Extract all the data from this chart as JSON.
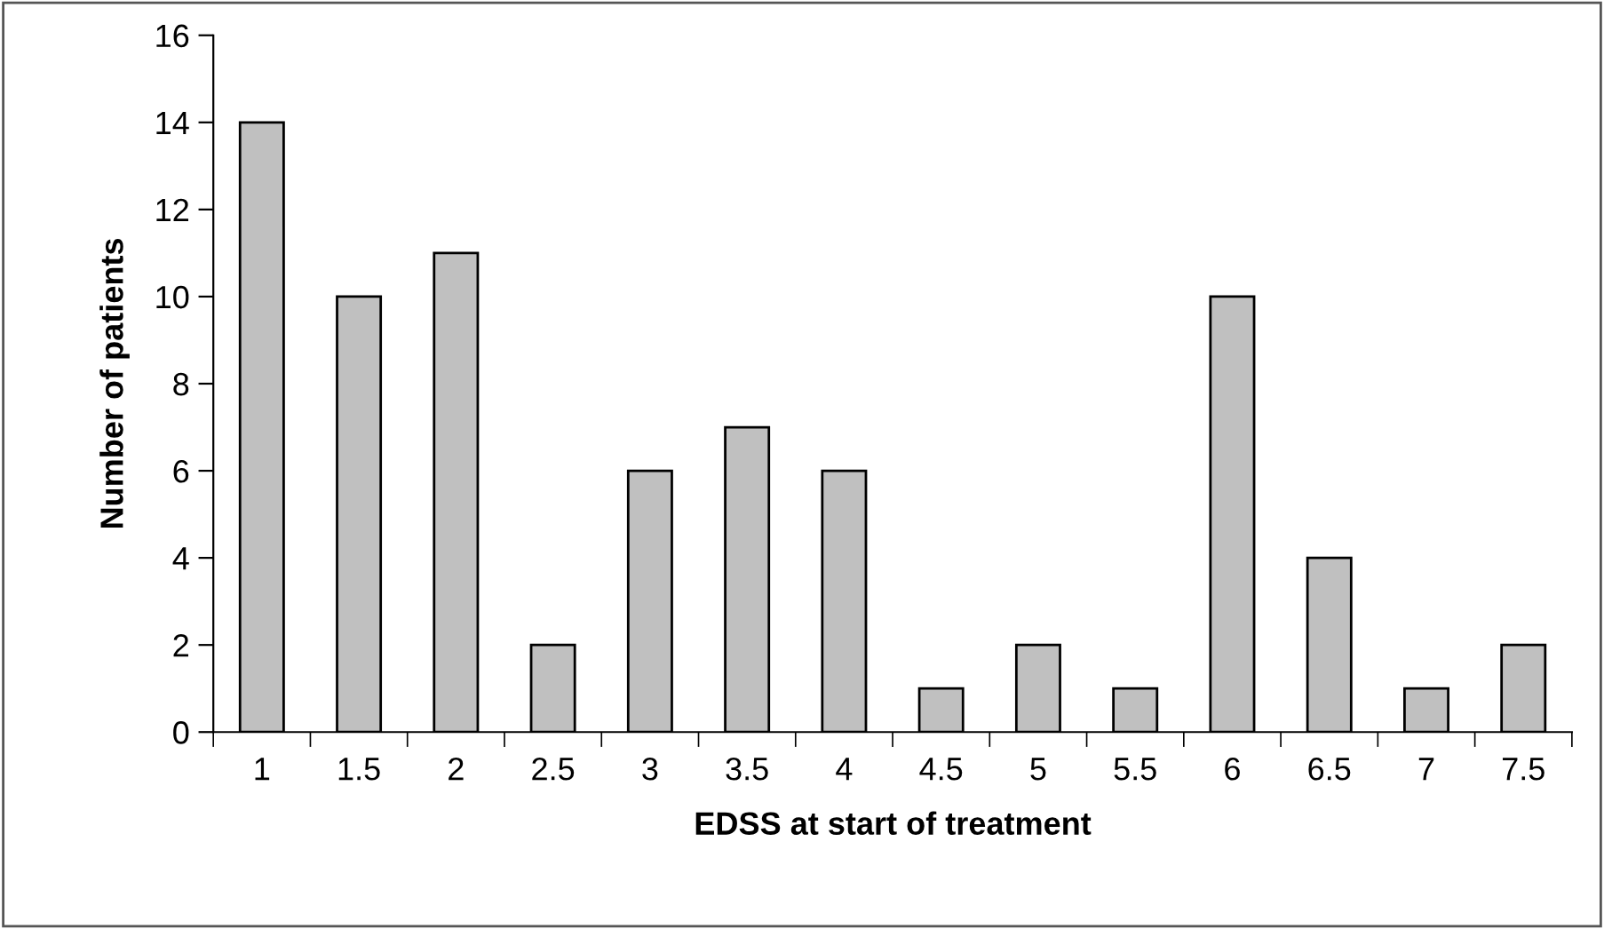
{
  "chart_data": {
    "type": "bar",
    "xlabel": "EDSS at start of treatment",
    "ylabel": "Number of patients",
    "categories": [
      "1",
      "1.5",
      "2",
      "2.5",
      "3",
      "3.5",
      "4",
      "4.5",
      "5",
      "5.5",
      "6",
      "6.5",
      "7",
      "7.5"
    ],
    "values": [
      14,
      10,
      11,
      2,
      6,
      7,
      6,
      1,
      2,
      1,
      10,
      4,
      1,
      2
    ],
    "color": "#c0c0c0",
    "ylim": [
      0,
      16
    ],
    "yticks": [
      0,
      2,
      4,
      6,
      8,
      10,
      12,
      14,
      16
    ],
    "grid": false,
    "legend": false
  }
}
